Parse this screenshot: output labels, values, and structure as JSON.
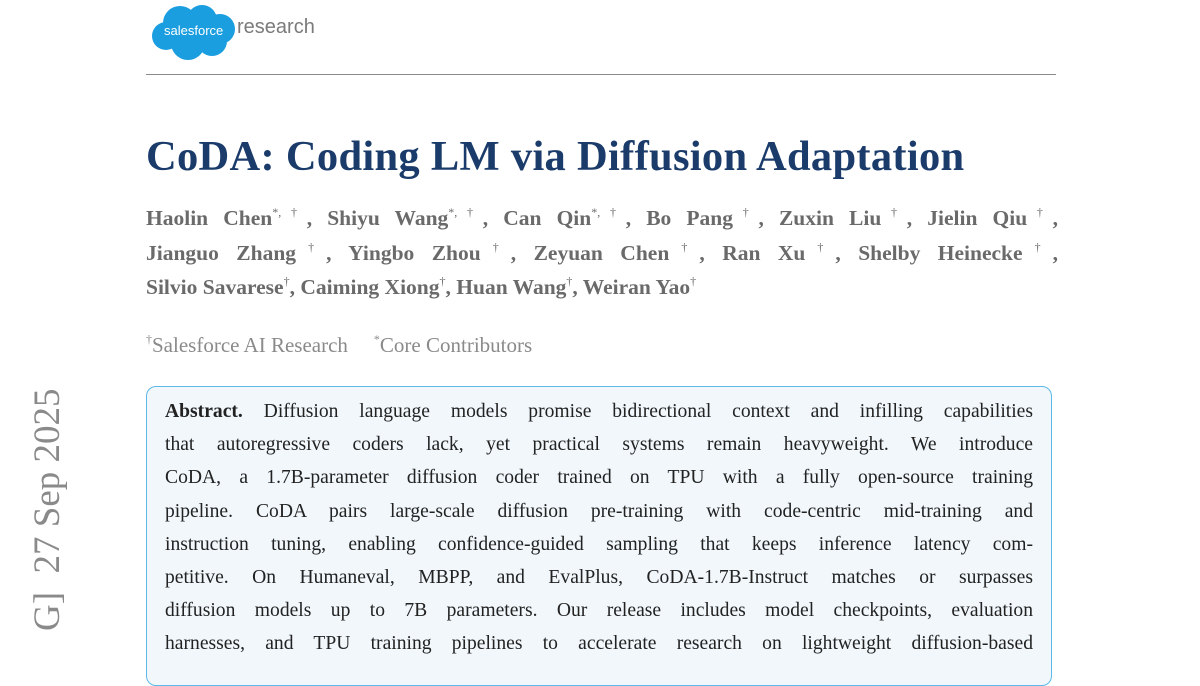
{
  "logo": {
    "brand": "salesforce",
    "suffix": "research",
    "color": "#1a9ee0"
  },
  "title": "CoDA: Coding LM via Diffusion Adaptation",
  "authors_lines": [
    [
      {
        "name": "Haolin Chen",
        "mark": "*,†"
      },
      {
        "name": "Shiyu Wang",
        "mark": "*,†"
      },
      {
        "name": "Can Qin",
        "mark": "*,†"
      },
      {
        "name": "Bo Pang",
        "mark": "†"
      },
      {
        "name": "Zuxin Liu",
        "mark": "†"
      },
      {
        "name": "Jielin Qiu",
        "mark": "†"
      }
    ],
    [
      {
        "name": "Jianguo Zhang",
        "mark": "†"
      },
      {
        "name": "Yingbo Zhou",
        "mark": "†"
      },
      {
        "name": "Zeyuan Chen",
        "mark": "†"
      },
      {
        "name": "Ran Xu",
        "mark": "†"
      },
      {
        "name": "Shelby Heinecke",
        "mark": "†"
      }
    ],
    [
      {
        "name": "Silvio Savarese",
        "mark": "†"
      },
      {
        "name": "Caiming Xiong",
        "mark": "†"
      },
      {
        "name": "Huan Wang",
        "mark": "†"
      },
      {
        "name": "Weiran Yao",
        "mark": "†"
      }
    ]
  ],
  "affiliations": [
    {
      "mark": "†",
      "text": "Salesforce AI Research"
    },
    {
      "mark": "*",
      "text": "Core Contributors"
    }
  ],
  "abstract": {
    "label": "Abstract.",
    "lines": [
      "Diffusion language models promise bidirectional context and infilling capabilities",
      "that autoregressive coders lack, yet practical systems remain heavyweight. We introduce",
      "CoDA, a 1.7B-parameter diffusion coder trained on TPU with a fully open-source training",
      "pipeline. CoDA pairs large-scale diffusion pre-training with code-centric mid-training and",
      "instruction tuning, enabling confidence-guided sampling that keeps inference latency com-",
      "petitive. On Humaneval, MBPP, and EvalPlus, CoDA-1.7B-Instruct matches or surpasses",
      "diffusion models up to 7B parameters. Our release includes model checkpoints, evaluation",
      "harnesses, and TPU training pipelines to accelerate research on lightweight diffusion-based"
    ]
  },
  "arxiv_stamp": "G]  27 Sep 2025",
  "colors": {
    "title": "#1b3c6b",
    "abstract_border": "#5cb9e8",
    "abstract_bg": "#f1f7fb"
  }
}
